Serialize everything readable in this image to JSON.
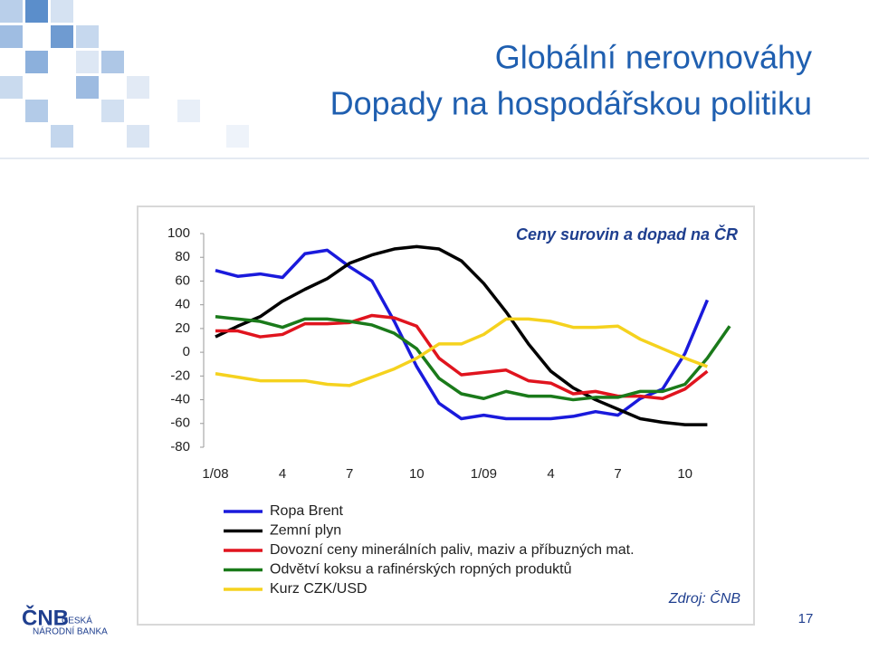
{
  "header": {
    "title": "Globální nerovnováhy",
    "subtitle": "Dopady na hospodářskou politiku"
  },
  "chart_data": {
    "type": "line",
    "title": "Ceny surovin a dopad na ČR",
    "categories": [
      "1/08",
      null,
      null,
      "4",
      null,
      null,
      "7",
      null,
      null,
      "10",
      null,
      null,
      "1/09",
      null,
      null,
      "4",
      null,
      null,
      "7",
      null,
      null,
      "10",
      null,
      null
    ],
    "series": [
      {
        "name": "Ropa Brent",
        "color": "#1a1adc",
        "values": [
          69,
          64,
          66,
          63,
          83,
          86,
          72,
          60,
          26,
          -12,
          -43,
          -56,
          -53,
          -56,
          -56,
          -56,
          -54,
          -50,
          -53,
          -39,
          -31,
          -1,
          44,
          null
        ]
      },
      {
        "name": "Zemní plyn",
        "color": "#000000",
        "values": [
          13,
          22,
          30,
          43,
          53,
          62,
          75,
          82,
          87,
          89,
          87,
          77,
          58,
          34,
          7,
          -16,
          -30,
          -40,
          -48,
          -56,
          -59,
          -61,
          -61,
          null
        ]
      },
      {
        "name": "Dovozní ceny minerálních paliv, maziv a příbuzných mat.",
        "color": "#e0141e",
        "values": [
          18,
          18,
          13,
          15,
          24,
          24,
          25,
          31,
          29,
          22,
          -5,
          -19,
          -17,
          -15,
          -24,
          -26,
          -35,
          -33,
          -37,
          -37,
          -39,
          -31,
          -16,
          null
        ]
      },
      {
        "name": "Odvětví koksu a rafinérských ropných produktů",
        "color": "#1a7a1a",
        "values": [
          30,
          28,
          26,
          21,
          28,
          28,
          26,
          23,
          16,
          3,
          -22,
          -35,
          -39,
          -33,
          -37,
          -37,
          -40,
          -38,
          -38,
          -33,
          -33,
          -27,
          -5,
          22
        ]
      },
      {
        "name": "Kurz CZK/USD",
        "color": "#f5d21e",
        "values": [
          -18,
          -21,
          -24,
          -24,
          -24,
          -27,
          -28,
          -21,
          -14,
          -5,
          7,
          7,
          15,
          28,
          28,
          26,
          21,
          21,
          22,
          11,
          3,
          -5,
          -12,
          null
        ]
      }
    ],
    "ylim": [
      -80,
      100
    ],
    "yticks": [
      -80,
      -60,
      -40,
      -20,
      0,
      20,
      40,
      60,
      80,
      100
    ],
    "grid": false,
    "source": "Zdroj: ČNB"
  },
  "footer": {
    "logo": "ČNB",
    "bank_line1": "ČESKÁ",
    "bank_line2": "NÁRODNÍ BANKA",
    "page": "17"
  }
}
